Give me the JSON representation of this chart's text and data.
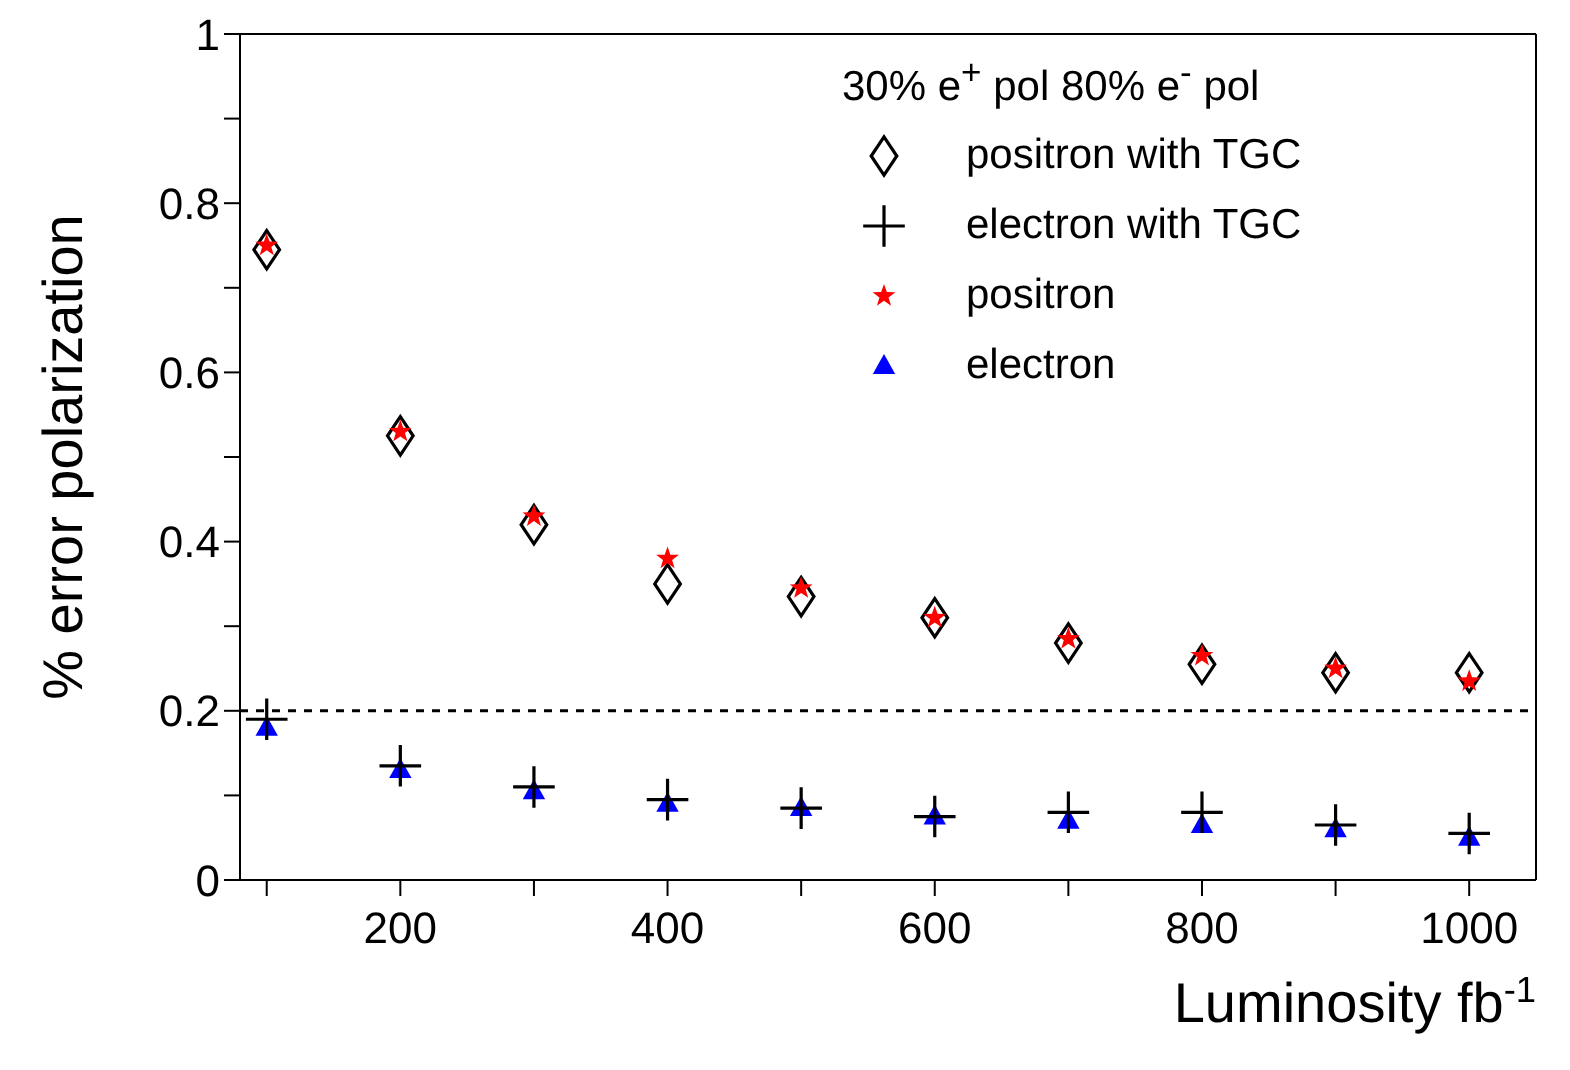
{
  "chart_data": {
    "type": "scatter",
    "xlabel": "Luminosity fb$^{-1}$",
    "ylabel": "% error polarization",
    "legend_title": "30% e$^{+}$ pol 80% e$^{-}$ pol",
    "legend": "top right",
    "x": [
      100,
      200,
      300,
      400,
      500,
      600,
      700,
      800,
      900,
      1000
    ],
    "xlim": [
      80,
      1050
    ],
    "xticks": [
      {
        "value": 100,
        "label": null
      },
      200,
      {
        "value": 300,
        "label": null
      },
      400,
      {
        "value": 500,
        "label": null
      },
      600,
      {
        "value": 700,
        "label": null
      },
      800,
      {
        "value": 900,
        "label": null
      },
      1000
    ],
    "ylim": [
      0,
      1
    ],
    "yticks": [
      0,
      {
        "value": 0.1,
        "label": null
      },
      0.2,
      {
        "value": 0.3,
        "label": null
      },
      0.4,
      {
        "value": 0.5,
        "label": null
      },
      0.6,
      {
        "value": 0.7,
        "label": null
      },
      0.8,
      {
        "value": 0.9,
        "label": null
      },
      1
    ],
    "ref_lines": [
      {
        "axis": "y",
        "value": 0.2,
        "line_style": "dashed",
        "color": "#000000"
      }
    ],
    "series": [
      {
        "name": "positron with TGC",
        "color": "#000000",
        "marker": "diamond",
        "values": [
          0.745,
          0.525,
          0.42,
          0.35,
          0.335,
          0.31,
          0.28,
          0.255,
          0.245,
          0.245
        ]
      },
      {
        "name": "electron with TGC",
        "color": "#000000",
        "marker": "cross",
        "values": [
          0.19,
          0.135,
          0.11,
          0.095,
          0.085,
          0.075,
          0.08,
          0.08,
          0.065,
          0.055
        ]
      },
      {
        "name": "positron",
        "color": "#ff0000",
        "marker": "star",
        "values": [
          0.75,
          0.53,
          0.43,
          0.38,
          0.345,
          0.31,
          0.285,
          0.265,
          0.25,
          0.235
        ]
      },
      {
        "name": "electron",
        "color": "#0000ff",
        "marker": "triangle",
        "values": [
          0.18,
          0.13,
          0.105,
          0.09,
          0.085,
          0.075,
          0.07,
          0.065,
          0.06,
          0.05
        ]
      }
    ]
  }
}
